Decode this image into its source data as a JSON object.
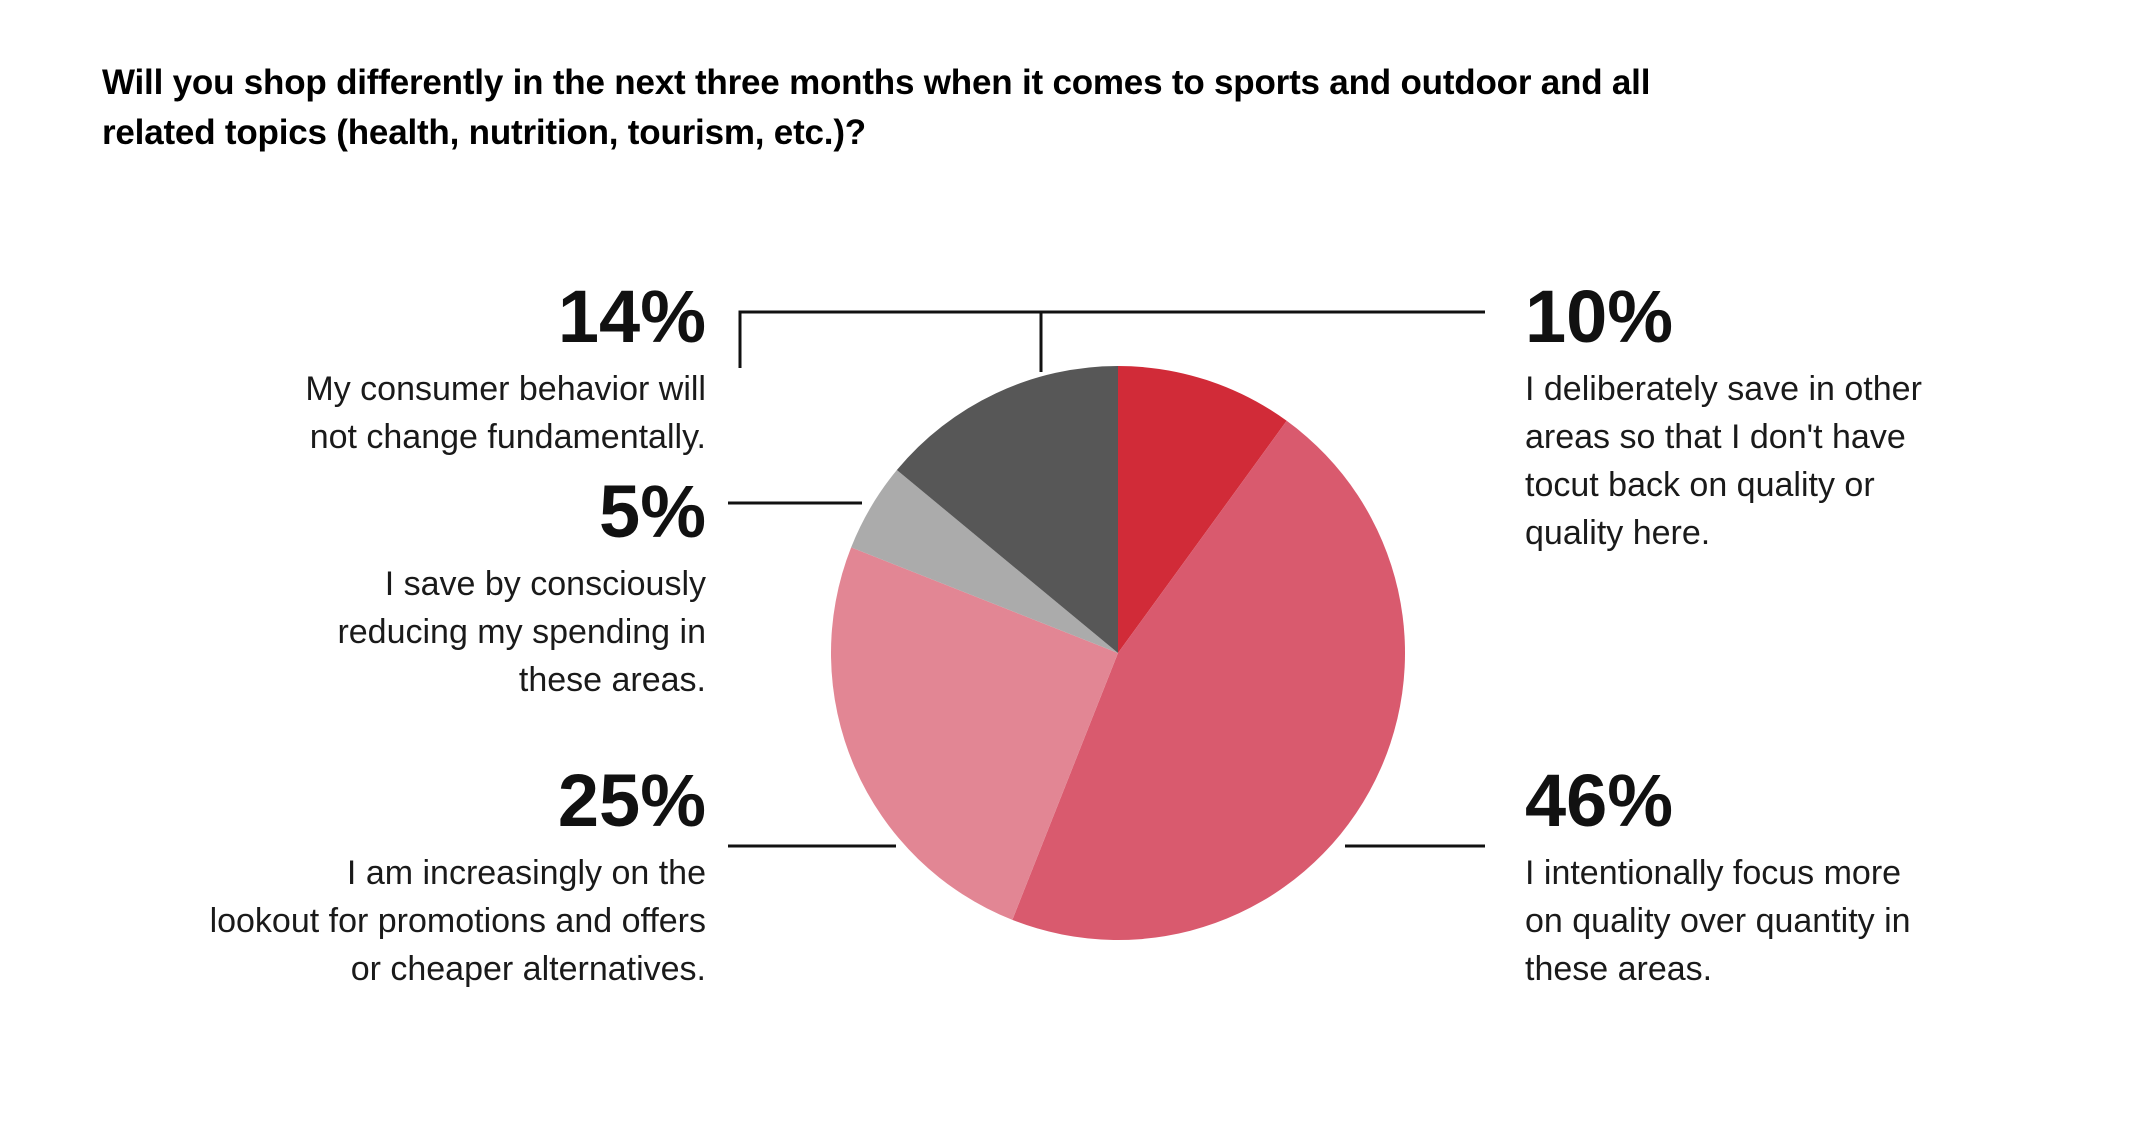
{
  "chart_data": {
    "type": "pie",
    "title": "Will you shop differently in the next three months when it comes to sports and outdoor and all related topics (health, nutrition, tourism, etc.)?",
    "unit": "%",
    "start_angle_deg": 0,
    "direction": "clockwise",
    "slices": [
      {
        "value": 10,
        "value_label": "10%",
        "label": "I deliberately save in other areas so that I don't have tocut back on quality or quality here.",
        "label_lines": [
          "I deliberately save in other",
          "areas so that I don't have",
          "tocut back on quality or",
          "quality here."
        ],
        "color": "#d12b38",
        "label_side": "right"
      },
      {
        "value": 46,
        "value_label": "46%",
        "label": "I intentionally focus more on quality over quantity in these areas.",
        "label_lines": [
          "I intentionally focus more",
          "on quality over quantity in",
          "these areas."
        ],
        "color": "#d95a6e",
        "label_side": "right"
      },
      {
        "value": 25,
        "value_label": "25%",
        "label": "I am increasingly on the lookout for promotions and offers or cheaper alternatives.",
        "label_lines": [
          "I am increasingly on the",
          "lookout for promotions and offers",
          "or cheaper alternatives."
        ],
        "color": "#e28694",
        "label_side": "left"
      },
      {
        "value": 5,
        "value_label": "5%",
        "label": "I save by consciously reducing my spending in these areas.",
        "label_lines": [
          "I save by consciously",
          "reducing my spending in",
          "these areas."
        ],
        "color": "#ababab",
        "label_side": "left"
      },
      {
        "value": 14,
        "value_label": "14%",
        "label": "My consumer behavior will not change fundamentally.",
        "label_lines": [
          "My consumer behavior will",
          "not change fundamentally."
        ],
        "color": "#575757",
        "label_side": "left"
      }
    ]
  }
}
